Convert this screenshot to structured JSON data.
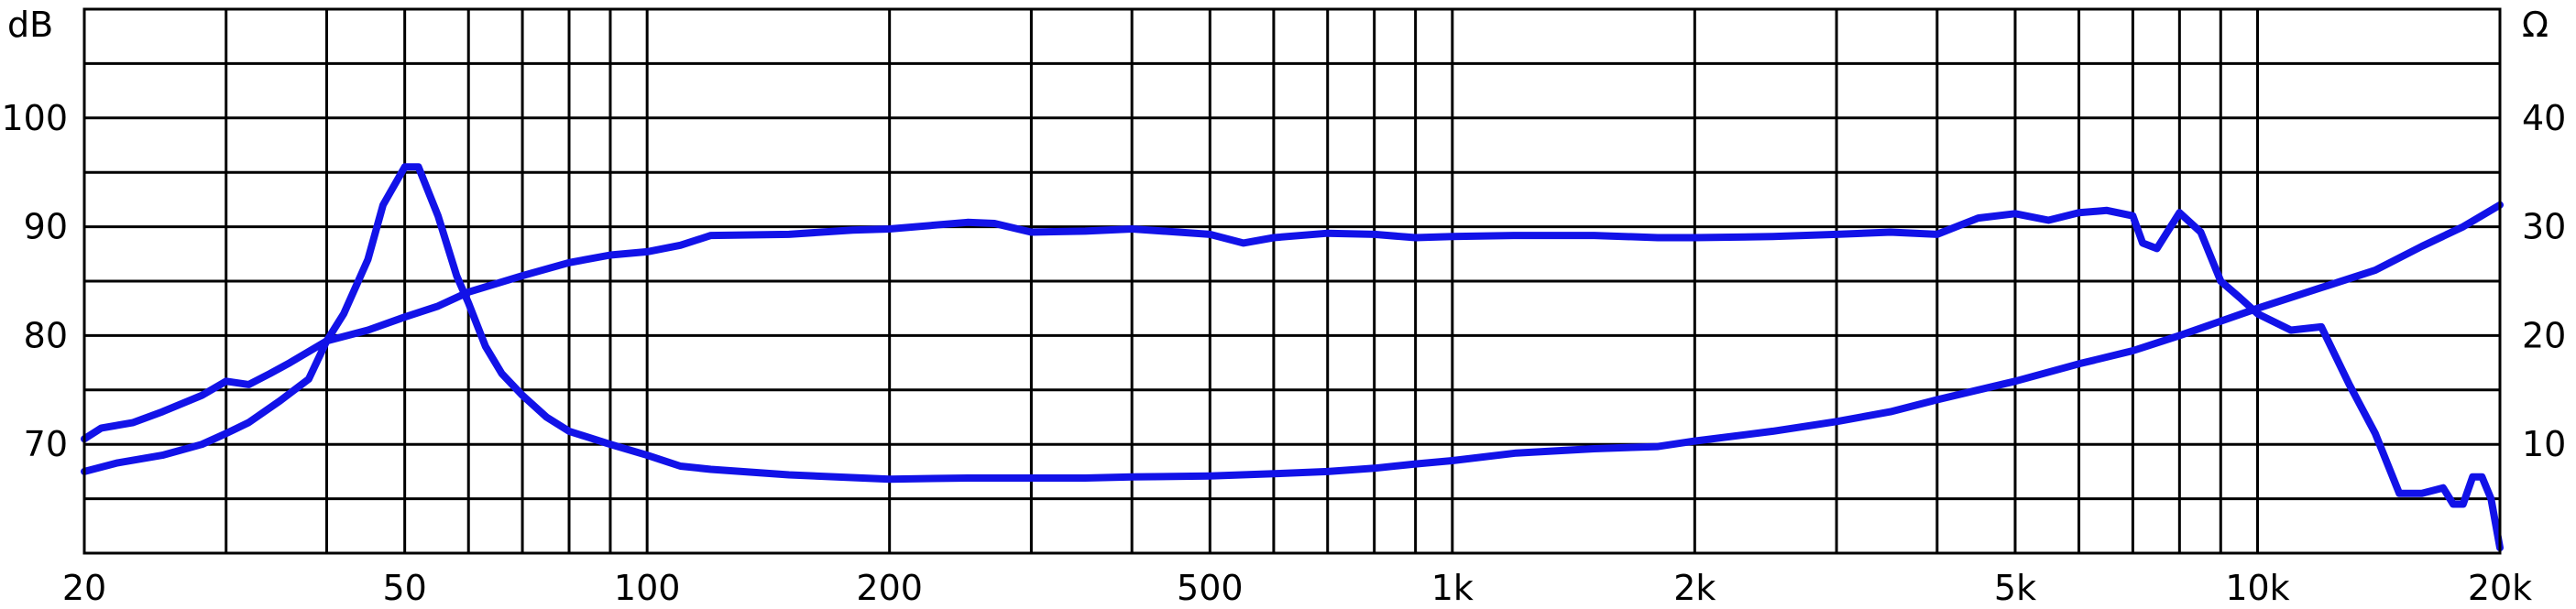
{
  "chart_data": {
    "type": "line",
    "x_scale": "log",
    "xlim": [
      20,
      20000
    ],
    "y_left": {
      "label": "dB",
      "lim": [
        60,
        110
      ],
      "ticks": [
        70,
        80,
        90,
        100
      ]
    },
    "y_right": {
      "label": "Ω",
      "lim": [
        0,
        50
      ],
      "ticks": [
        10,
        20,
        30,
        40
      ]
    },
    "x_ticks": [
      {
        "value": 20,
        "label": "20"
      },
      {
        "value": 50,
        "label": "50"
      },
      {
        "value": 100,
        "label": "100"
      },
      {
        "value": 200,
        "label": "200"
      },
      {
        "value": 500,
        "label": "500"
      },
      {
        "value": 1000,
        "label": "1k"
      },
      {
        "value": 2000,
        "label": "2k"
      },
      {
        "value": 5000,
        "label": "5k"
      },
      {
        "value": 10000,
        "label": "10k"
      },
      {
        "value": 20000,
        "label": "20k"
      }
    ],
    "x_gridlines": [
      20,
      30,
      40,
      50,
      60,
      70,
      80,
      90,
      100,
      200,
      300,
      400,
      500,
      600,
      700,
      800,
      900,
      1000,
      2000,
      3000,
      4000,
      5000,
      6000,
      7000,
      8000,
      9000,
      10000,
      20000
    ],
    "y_gridlines_left": [
      60,
      65,
      70,
      75,
      80,
      85,
      90,
      95,
      100,
      105,
      110
    ],
    "grid": true,
    "series": [
      {
        "axis": "left",
        "color": "#1212e8",
        "points": [
          [
            20,
            67.5
          ],
          [
            22,
            68.3
          ],
          [
            25,
            69.0
          ],
          [
            28,
            70.0
          ],
          [
            30,
            71.0
          ],
          [
            32,
            72.0
          ],
          [
            35,
            74.0
          ],
          [
            38,
            76.0
          ],
          [
            40,
            79.5
          ],
          [
            42,
            82.0
          ],
          [
            45,
            87.0
          ],
          [
            47,
            92.0
          ],
          [
            50,
            95.5
          ],
          [
            52,
            95.5
          ],
          [
            55,
            91.0
          ],
          [
            58,
            85.5
          ],
          [
            60,
            83.0
          ],
          [
            63,
            79.0
          ],
          [
            66,
            76.5
          ],
          [
            70,
            74.5
          ],
          [
            75,
            72.5
          ],
          [
            80,
            71.2
          ],
          [
            90,
            70.0
          ],
          [
            100,
            69.0
          ],
          [
            110,
            68.0
          ],
          [
            120,
            67.7
          ],
          [
            150,
            67.2
          ],
          [
            200,
            66.8
          ],
          [
            250,
            66.9
          ],
          [
            300,
            66.9
          ],
          [
            350,
            66.9
          ],
          [
            400,
            67.0
          ],
          [
            500,
            67.1
          ],
          [
            600,
            67.3
          ],
          [
            700,
            67.5
          ],
          [
            800,
            67.8
          ],
          [
            900,
            68.2
          ],
          [
            1000,
            68.5
          ],
          [
            1200,
            69.2
          ],
          [
            1500,
            69.6
          ],
          [
            1800,
            69.8
          ],
          [
            2000,
            70.3
          ],
          [
            2500,
            71.2
          ],
          [
            3000,
            72.1
          ],
          [
            3500,
            73.0
          ],
          [
            4000,
            74.1
          ],
          [
            5000,
            75.8
          ],
          [
            6000,
            77.4
          ],
          [
            7000,
            78.6
          ],
          [
            8000,
            80.0
          ],
          [
            10000,
            82.5
          ],
          [
            12000,
            84.4
          ],
          [
            14000,
            86.0
          ],
          [
            16000,
            88.2
          ],
          [
            18000,
            90.0
          ],
          [
            20000,
            92.0
          ]
        ]
      },
      {
        "axis": "left",
        "color": "#1212e8",
        "points": [
          [
            20,
            70.5
          ],
          [
            21,
            71.5
          ],
          [
            23,
            72.0
          ],
          [
            25,
            73.0
          ],
          [
            28,
            74.5
          ],
          [
            30,
            75.8
          ],
          [
            32,
            75.5
          ],
          [
            34,
            76.5
          ],
          [
            36,
            77.5
          ],
          [
            40,
            79.5
          ],
          [
            45,
            80.5
          ],
          [
            50,
            81.7
          ],
          [
            55,
            82.7
          ],
          [
            60,
            84.0
          ],
          [
            70,
            85.5
          ],
          [
            80,
            86.7
          ],
          [
            90,
            87.4
          ],
          [
            100,
            87.7
          ],
          [
            110,
            88.3
          ],
          [
            120,
            89.2
          ],
          [
            150,
            89.3
          ],
          [
            180,
            89.7
          ],
          [
            200,
            89.8
          ],
          [
            250,
            90.4
          ],
          [
            270,
            90.3
          ],
          [
            300,
            89.5
          ],
          [
            350,
            89.6
          ],
          [
            400,
            89.8
          ],
          [
            500,
            89.3
          ],
          [
            550,
            88.5
          ],
          [
            600,
            89.0
          ],
          [
            700,
            89.4
          ],
          [
            800,
            89.3
          ],
          [
            900,
            89.0
          ],
          [
            1000,
            89.1
          ],
          [
            1200,
            89.2
          ],
          [
            1500,
            89.2
          ],
          [
            1800,
            89.0
          ],
          [
            2000,
            89.0
          ],
          [
            2500,
            89.1
          ],
          [
            3000,
            89.3
          ],
          [
            3500,
            89.5
          ],
          [
            4000,
            89.3
          ],
          [
            4500,
            90.8
          ],
          [
            5000,
            91.2
          ],
          [
            5500,
            90.6
          ],
          [
            6000,
            91.3
          ],
          [
            6500,
            91.5
          ],
          [
            7000,
            91.0
          ],
          [
            7200,
            88.5
          ],
          [
            7500,
            88.0
          ],
          [
            8000,
            91.3
          ],
          [
            8500,
            89.5
          ],
          [
            9000,
            85.0
          ],
          [
            9500,
            83.5
          ],
          [
            10000,
            82.0
          ],
          [
            11000,
            80.5
          ],
          [
            12000,
            80.8
          ],
          [
            13000,
            75.5
          ],
          [
            14000,
            71.0
          ],
          [
            15000,
            65.5
          ],
          [
            16000,
            65.5
          ],
          [
            17000,
            66.0
          ],
          [
            17500,
            64.5
          ],
          [
            18000,
            64.5
          ],
          [
            18500,
            67.0
          ],
          [
            19000,
            67.0
          ],
          [
            19500,
            65.0
          ],
          [
            20000,
            60.5
          ]
        ]
      }
    ]
  }
}
